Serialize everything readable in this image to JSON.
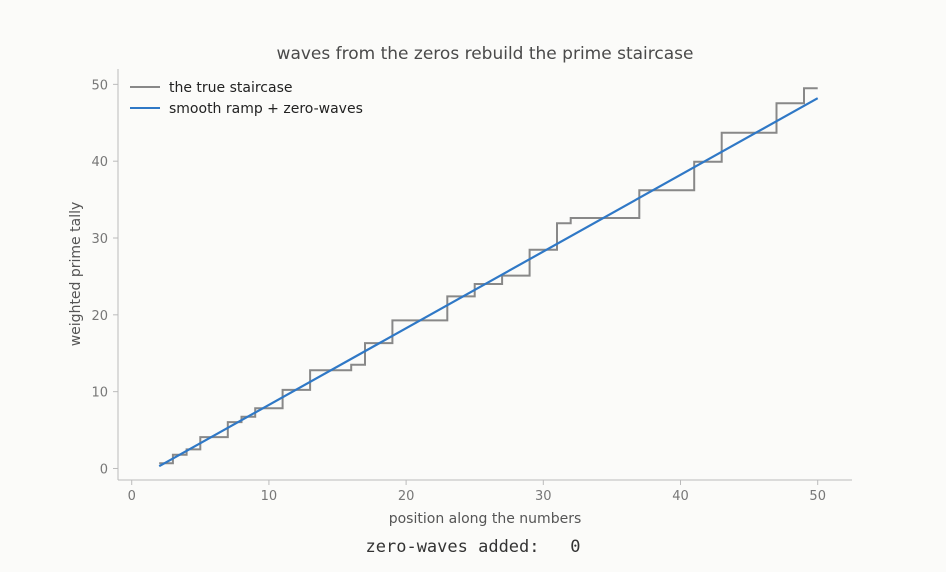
{
  "chart_data": {
    "type": "line",
    "title": "waves from the zeros rebuild the prime staircase",
    "xlabel": "position along the numbers",
    "ylabel": "weighted prime tally",
    "xlim": [
      -1,
      52.5
    ],
    "ylim": [
      -1.5,
      52
    ],
    "xticks": [
      0,
      10,
      20,
      30,
      40,
      50
    ],
    "yticks": [
      0,
      10,
      20,
      30,
      40,
      50
    ],
    "grid": false,
    "legend_position": "top-left",
    "series": [
      {
        "name": "the true staircase",
        "kind": "step",
        "color": "#888888",
        "x": [
          2,
          3,
          4,
          5,
          7,
          8,
          9,
          11,
          13,
          16,
          17,
          19,
          23,
          25,
          27,
          29,
          31,
          32,
          37,
          41,
          43,
          47,
          49,
          50
        ],
        "y": [
          0.69,
          1.79,
          2.48,
          4.09,
          6.04,
          6.73,
          7.83,
          10.23,
          12.79,
          13.49,
          16.32,
          19.27,
          22.4,
          24.01,
          25.11,
          28.48,
          31.91,
          32.61,
          36.22,
          39.93,
          43.69,
          47.54,
          49.49,
          49.49
        ]
      },
      {
        "name": "smooth ramp + zero-waves",
        "kind": "line",
        "color": "#2f78c6",
        "x": [
          2,
          50
        ],
        "y": [
          0.3,
          48.2
        ]
      }
    ]
  },
  "footer": {
    "counter_label": "zero-waves added:",
    "counter_value": "0"
  }
}
